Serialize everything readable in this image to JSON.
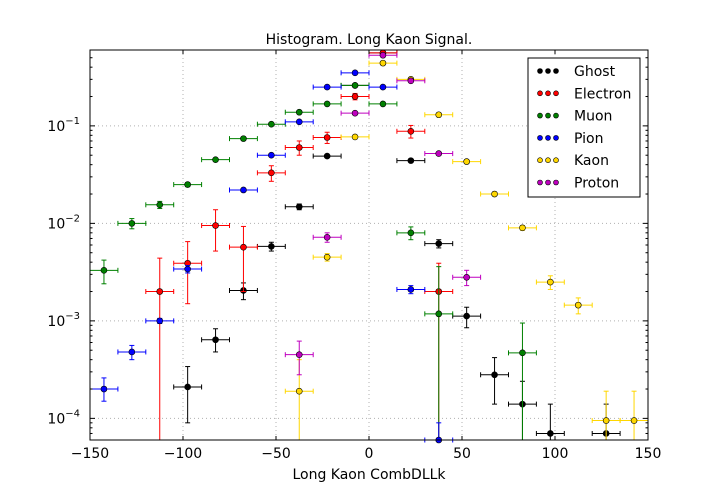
{
  "chart_data": {
    "type": "scatter",
    "title": "Histogram. Long Kaon Signal.",
    "xlabel": "Long Kaon CombDLLk",
    "ylabel": "",
    "xlim": [
      -150,
      150
    ],
    "ylim": [
      6e-05,
      0.6
    ],
    "yscale": "log",
    "grid": true,
    "legend_position": "top-right",
    "x_ticks": [
      -150,
      -100,
      -50,
      0,
      50,
      100,
      150
    ],
    "x_tick_labels": [
      "−150",
      "−100",
      "−50",
      "0",
      "50",
      "100",
      "150"
    ],
    "y_ticks": [
      0.0001,
      0.001,
      0.01,
      0.1
    ],
    "y_tick_labels": [
      {
        "base": "10",
        "exp": "−4"
      },
      {
        "base": "10",
        "exp": "−3"
      },
      {
        "base": "10",
        "exp": "−2"
      },
      {
        "base": "10",
        "exp": "−1"
      }
    ],
    "bin_half_width": 7.5,
    "series": [
      {
        "name": "Ghost",
        "color": "#000000",
        "points": [
          {
            "x": -97.5,
            "y": 0.00021,
            "lo": 9e-05,
            "hi": 0.00034
          },
          {
            "x": -82.5,
            "y": 0.00064,
            "lo": 0.00048,
            "hi": 0.00083
          },
          {
            "x": -67.5,
            "y": 0.00205,
            "lo": 0.00165,
            "hi": 0.00245
          },
          {
            "x": -52.5,
            "y": 0.0058,
            "lo": 0.0052,
            "hi": 0.0064
          },
          {
            "x": -37.5,
            "y": 0.0148,
            "lo": 0.0138,
            "hi": 0.0158
          },
          {
            "x": -22.5,
            "y": 0.049,
            "lo": 0.0475,
            "hi": 0.0505
          },
          {
            "x": -7.5,
            "y": 0.26,
            "lo": 0.255,
            "hi": 0.265
          },
          {
            "x": 7.5,
            "y": 0.56,
            "lo": 0.55,
            "hi": 0.57
          },
          {
            "x": 22.5,
            "y": 0.044,
            "lo": 0.0425,
            "hi": 0.0455
          },
          {
            "x": 37.5,
            "y": 0.0062,
            "lo": 0.0056,
            "hi": 0.0068
          },
          {
            "x": 52.5,
            "y": 0.00112,
            "lo": 0.00085,
            "hi": 0.00138
          },
          {
            "x": 67.5,
            "y": 0.00028,
            "lo": 0.00014,
            "hi": 0.00042
          },
          {
            "x": 82.5,
            "y": 0.00014,
            "lo": 4e-05,
            "hi": 0.00024
          },
          {
            "x": 97.5,
            "y": 7e-05,
            "lo": 1e-05,
            "hi": 0.00014
          },
          {
            "x": 127.5,
            "y": 7e-05,
            "lo": 1e-05,
            "hi": 0.00014
          }
        ]
      },
      {
        "name": "Electron",
        "color": "#ff0000",
        "points": [
          {
            "x": -112.5,
            "y": 0.002,
            "lo": 1e-05,
            "hi": 0.0044
          },
          {
            "x": -97.5,
            "y": 0.0039,
            "lo": 0.0015,
            "hi": 0.0065
          },
          {
            "x": -82.5,
            "y": 0.0095,
            "lo": 0.0052,
            "hi": 0.0138
          },
          {
            "x": -67.5,
            "y": 0.0057,
            "lo": 0.002,
            "hi": 0.0093
          },
          {
            "x": -52.5,
            "y": 0.033,
            "lo": 0.027,
            "hi": 0.039
          },
          {
            "x": -37.5,
            "y": 0.06,
            "lo": 0.05,
            "hi": 0.07
          },
          {
            "x": -22.5,
            "y": 0.076,
            "lo": 0.066,
            "hi": 0.086
          },
          {
            "x": -7.5,
            "y": 0.2,
            "lo": 0.185,
            "hi": 0.215
          },
          {
            "x": 7.5,
            "y": 0.56,
            "lo": 0.54,
            "hi": 0.58
          },
          {
            "x": 22.5,
            "y": 0.088,
            "lo": 0.075,
            "hi": 0.101
          },
          {
            "x": 37.5,
            "y": 0.002,
            "lo": 1e-05,
            "hi": 0.0039
          }
        ]
      },
      {
        "name": "Muon",
        "color": "#008000",
        "points": [
          {
            "x": -142.5,
            "y": 0.0033,
            "lo": 0.0024,
            "hi": 0.0042
          },
          {
            "x": -127.5,
            "y": 0.01,
            "lo": 0.0088,
            "hi": 0.0112
          },
          {
            "x": -112.5,
            "y": 0.0155,
            "lo": 0.0142,
            "hi": 0.0168
          },
          {
            "x": -97.5,
            "y": 0.025,
            "lo": 0.0238,
            "hi": 0.0262
          },
          {
            "x": -82.5,
            "y": 0.045,
            "lo": 0.0438,
            "hi": 0.0462
          },
          {
            "x": -67.5,
            "y": 0.074,
            "lo": 0.072,
            "hi": 0.076
          },
          {
            "x": -52.5,
            "y": 0.104,
            "lo": 0.102,
            "hi": 0.106
          },
          {
            "x": -37.5,
            "y": 0.138,
            "lo": 0.135,
            "hi": 0.141
          },
          {
            "x": -22.5,
            "y": 0.168,
            "lo": 0.165,
            "hi": 0.171
          },
          {
            "x": -7.5,
            "y": 0.26,
            "lo": 0.256,
            "hi": 0.264
          },
          {
            "x": 7.5,
            "y": 0.168,
            "lo": 0.165,
            "hi": 0.171
          },
          {
            "x": 22.5,
            "y": 0.008,
            "lo": 0.0068,
            "hi": 0.0092
          },
          {
            "x": 37.5,
            "y": 0.00118,
            "lo": 1e-05,
            "hi": 0.0036
          },
          {
            "x": 82.5,
            "y": 0.00047,
            "lo": 1e-05,
            "hi": 0.00095
          }
        ]
      },
      {
        "name": "Pion",
        "color": "#0000ff",
        "points": [
          {
            "x": -142.5,
            "y": 0.0002,
            "lo": 0.00015,
            "hi": 0.00026
          },
          {
            "x": -127.5,
            "y": 0.00048,
            "lo": 0.0004,
            "hi": 0.00056
          },
          {
            "x": -112.5,
            "y": 0.001,
            "lo": 0.00094,
            "hi": 0.00106
          },
          {
            "x": -97.5,
            "y": 0.0034,
            "lo": 0.0031,
            "hi": 0.0037
          },
          {
            "x": -67.5,
            "y": 0.022,
            "lo": 0.0215,
            "hi": 0.0225
          },
          {
            "x": -52.5,
            "y": 0.05,
            "lo": 0.049,
            "hi": 0.051
          },
          {
            "x": -37.5,
            "y": 0.11,
            "lo": 0.108,
            "hi": 0.112
          },
          {
            "x": -22.5,
            "y": 0.25,
            "lo": 0.247,
            "hi": 0.253
          },
          {
            "x": -7.5,
            "y": 0.35,
            "lo": 0.346,
            "hi": 0.354
          },
          {
            "x": 7.5,
            "y": 0.25,
            "lo": 0.247,
            "hi": 0.253
          },
          {
            "x": 22.5,
            "y": 0.0021,
            "lo": 0.0019,
            "hi": 0.0023
          },
          {
            "x": 37.5,
            "y": 6e-05,
            "lo": 3e-05,
            "hi": 9e-05
          }
        ]
      },
      {
        "name": "Kaon",
        "color": "#ffd700",
        "points": [
          {
            "x": -37.5,
            "y": 0.00019,
            "lo": 1e-05,
            "hi": 0.0004
          },
          {
            "x": -22.5,
            "y": 0.0045,
            "lo": 0.0041,
            "hi": 0.0049
          },
          {
            "x": -7.5,
            "y": 0.077,
            "lo": 0.075,
            "hi": 0.079
          },
          {
            "x": 7.5,
            "y": 0.44,
            "lo": 0.435,
            "hi": 0.445
          },
          {
            "x": 22.5,
            "y": 0.3,
            "lo": 0.296,
            "hi": 0.304
          },
          {
            "x": 37.5,
            "y": 0.13,
            "lo": 0.127,
            "hi": 0.133
          },
          {
            "x": 52.5,
            "y": 0.043,
            "lo": 0.042,
            "hi": 0.044
          },
          {
            "x": 67.5,
            "y": 0.02,
            "lo": 0.0193,
            "hi": 0.0207
          },
          {
            "x": 82.5,
            "y": 0.009,
            "lo": 0.0085,
            "hi": 0.0095
          },
          {
            "x": 97.5,
            "y": 0.0025,
            "lo": 0.0021,
            "hi": 0.0029
          },
          {
            "x": 112.5,
            "y": 0.00145,
            "lo": 0.00118,
            "hi": 0.00172
          },
          {
            "x": 127.5,
            "y": 9.5e-05,
            "lo": 5e-05,
            "hi": 0.00019
          },
          {
            "x": 142.5,
            "y": 9.5e-05,
            "lo": 5e-05,
            "hi": 0.00019
          }
        ]
      },
      {
        "name": "Proton",
        "color": "#bf00bf",
        "points": [
          {
            "x": -37.5,
            "y": 0.00045,
            "lo": 0.00028,
            "hi": 0.00062
          },
          {
            "x": -22.5,
            "y": 0.0072,
            "lo": 0.0064,
            "hi": 0.008
          },
          {
            "x": -7.5,
            "y": 0.135,
            "lo": 0.132,
            "hi": 0.138
          },
          {
            "x": 7.5,
            "y": 0.53,
            "lo": 0.525,
            "hi": 0.535
          },
          {
            "x": 22.5,
            "y": 0.29,
            "lo": 0.286,
            "hi": 0.294
          },
          {
            "x": 37.5,
            "y": 0.052,
            "lo": 0.0505,
            "hi": 0.0535
          },
          {
            "x": 52.5,
            "y": 0.0028,
            "lo": 0.0023,
            "hi": 0.0033
          }
        ]
      }
    ]
  }
}
